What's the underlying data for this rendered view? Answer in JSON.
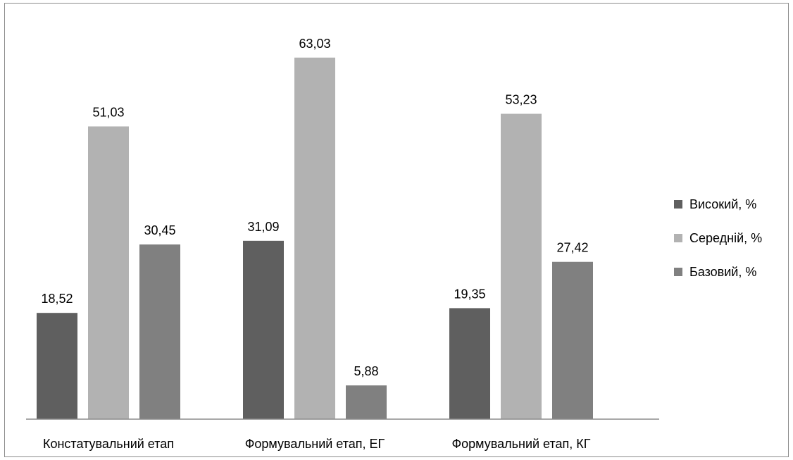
{
  "chart_data": {
    "type": "bar",
    "title": "",
    "xlabel": "",
    "ylabel": "",
    "ylim": [
      0,
      70
    ],
    "grid": false,
    "legend_position": "right",
    "categories": [
      "Констатувальний етап",
      "Формувальний етап, ЕГ",
      "Формувальний етап, КГ"
    ],
    "series": [
      {
        "name": "Високий, %",
        "color": "#5f5f5f",
        "values": [
          18.52,
          31.09,
          19.35
        ],
        "labels": [
          "18,52",
          "31,09",
          "19,35"
        ]
      },
      {
        "name": "Середній, %",
        "color": "#b2b2b2",
        "values": [
          51.03,
          63.03,
          53.23
        ],
        "labels": [
          "51,03",
          "63,03",
          "53,23"
        ]
      },
      {
        "name": "Базовий, %",
        "color": "#808080",
        "values": [
          30.45,
          5.88,
          27.42
        ],
        "labels": [
          "30,45",
          "5,88",
          "27,42"
        ]
      }
    ]
  }
}
